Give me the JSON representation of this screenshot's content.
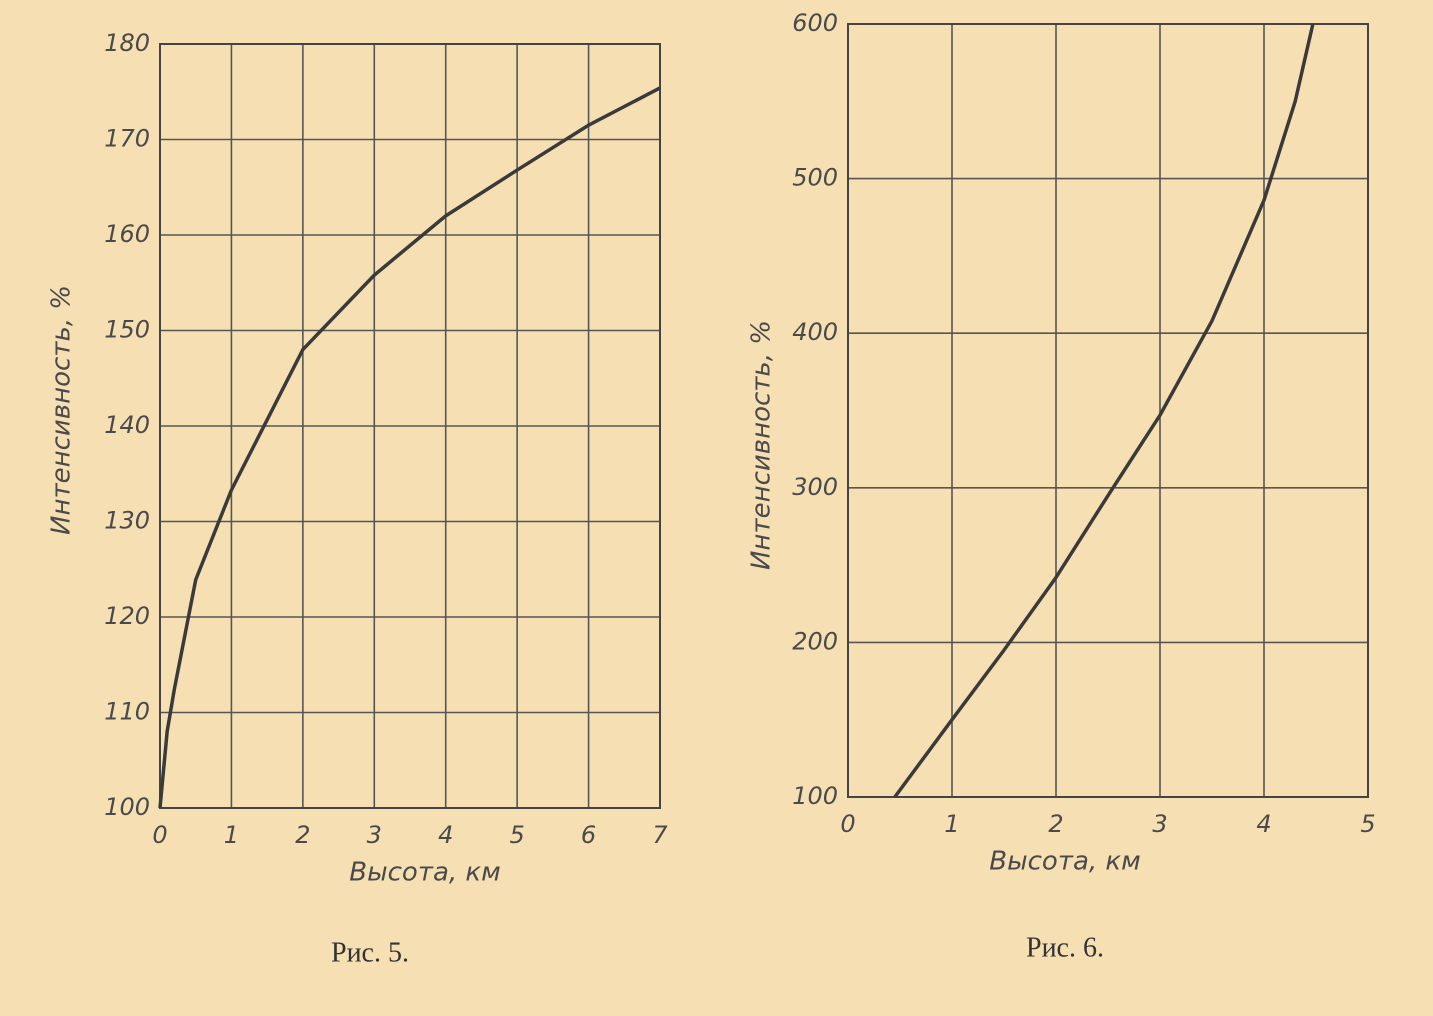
{
  "chart_data": [
    {
      "type": "line",
      "caption": "Рис. 5.",
      "xlabel": "Высота, км",
      "ylabel": "Интенсивность, %",
      "x": [
        0,
        0.1,
        0.2,
        0.5,
        1,
        2,
        3,
        4,
        5,
        6,
        7
      ],
      "values": [
        100,
        108,
        112.4,
        123.9,
        133.3,
        148,
        155.8,
        162,
        166.8,
        171.5,
        175.4
      ],
      "color": "#3a3a3a",
      "xlim": [
        0,
        7
      ],
      "xticks": [
        0,
        1,
        2,
        3,
        4,
        5,
        6,
        7
      ],
      "ylim": [
        100,
        180
      ],
      "yticks": [
        100,
        110,
        120,
        130,
        140,
        150,
        160,
        170,
        180
      ],
      "grid": true
    },
    {
      "type": "line",
      "caption": "Рис. 6.",
      "xlabel": "Высота, км",
      "ylabel": "Интенсивность, %",
      "x": [
        0.45,
        1,
        1.5,
        2,
        2.5,
        3,
        3.5,
        4,
        4.3,
        4.47
      ],
      "values": [
        100,
        150,
        195,
        242,
        295,
        347,
        408,
        486,
        550,
        600
      ],
      "color": "#3a3a3a",
      "xlim": [
        0,
        5
      ],
      "xticks": [
        0,
        1,
        2,
        3,
        4,
        5
      ],
      "ylim": [
        100,
        600
      ],
      "yticks": [
        100,
        200,
        300,
        400,
        500,
        600
      ],
      "grid": true
    }
  ]
}
